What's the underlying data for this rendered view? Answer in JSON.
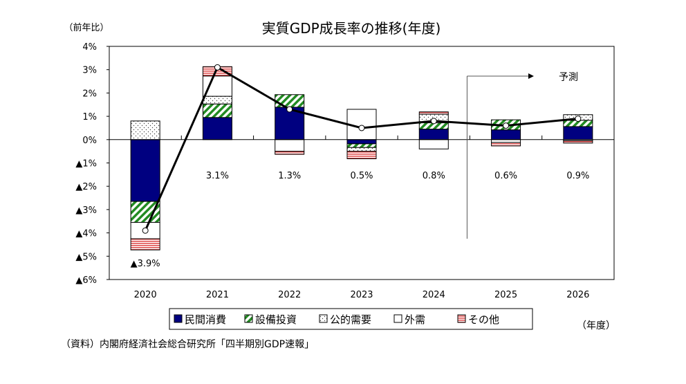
{
  "chart_data": {
    "type": "bar",
    "stacked": true,
    "title": "実質GDP成長率の推移(年度)",
    "ylabel": "（前年比）",
    "xlabel": "（年度）",
    "source": "（資料）内閣府経済社会総合研究所「四半期別GDP速報」",
    "forecast_label": "予測",
    "forecast_from": "2025",
    "ylim": [
      -6,
      4
    ],
    "yticks": [
      {
        "value": 4,
        "label": "4%"
      },
      {
        "value": 3,
        "label": "3%"
      },
      {
        "value": 2,
        "label": "2%"
      },
      {
        "value": 1,
        "label": "1%"
      },
      {
        "value": 0,
        "label": "0%"
      },
      {
        "value": -1,
        "label": "▲1%"
      },
      {
        "value": -2,
        "label": "▲2%"
      },
      {
        "value": -3,
        "label": "▲3%"
      },
      {
        "value": -4,
        "label": "▲4%"
      },
      {
        "value": -5,
        "label": "▲5%"
      },
      {
        "value": -6,
        "label": "▲6%"
      }
    ],
    "categories": [
      "2020",
      "2021",
      "2022",
      "2023",
      "2024",
      "2025",
      "2026"
    ],
    "series": [
      {
        "name": "民間消費",
        "pattern": "solid",
        "color": "#000080",
        "values": [
          -2.65,
          0.95,
          1.39,
          -0.18,
          0.45,
          0.42,
          0.56
        ]
      },
      {
        "name": "設備投資",
        "pattern": "diagonal",
        "color": "#228B22",
        "values": [
          -0.9,
          0.58,
          0.54,
          -0.16,
          0.27,
          0.43,
          0.27
        ]
      },
      {
        "name": "公的需要",
        "pattern": "dots",
        "color": "#555555",
        "values": [
          0.8,
          0.33,
          0.0,
          -0.16,
          0.37,
          0.0,
          0.24
        ]
      },
      {
        "name": "外需",
        "pattern": "blank",
        "color": "#ffffff",
        "values": [
          -0.7,
          0.87,
          -0.5,
          1.3,
          -0.4,
          -0.12,
          -0.05
        ]
      },
      {
        "name": "その他",
        "pattern": "horizontal",
        "color": "#e05050",
        "values": [
          -0.48,
          0.4,
          -0.13,
          -0.32,
          0.1,
          -0.15,
          -0.1
        ]
      }
    ],
    "line": {
      "values": [
        -3.9,
        3.1,
        1.3,
        0.5,
        0.8,
        0.6,
        0.9
      ],
      "labels": [
        "▲3.9%",
        "3.1%",
        "1.3%",
        "0.5%",
        "0.8%",
        "0.6%",
        "0.9%"
      ]
    },
    "grid": false,
    "legend_position": "bottom"
  }
}
